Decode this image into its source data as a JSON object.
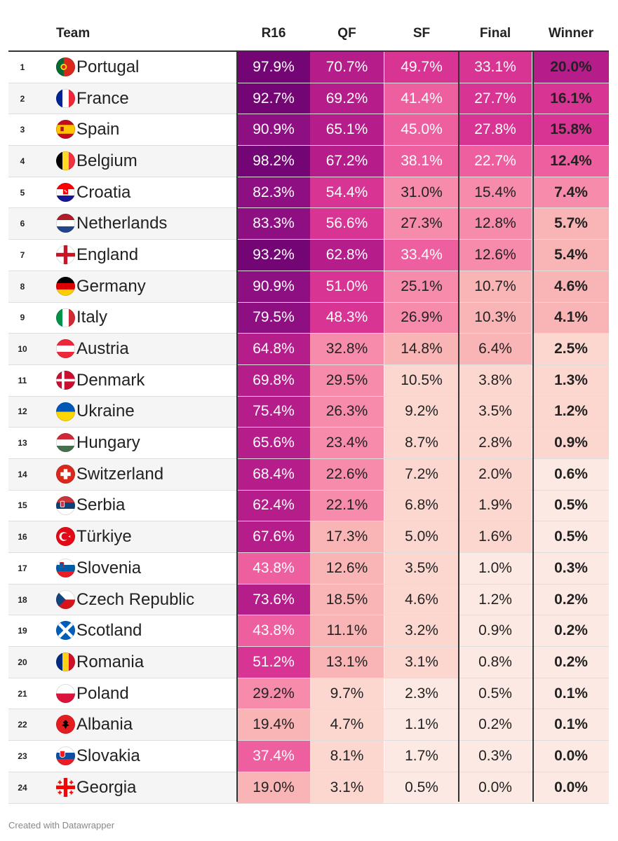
{
  "header": {
    "rank": "",
    "team": "Team",
    "r16": "R16",
    "qf": "QF",
    "sf": "SF",
    "final": "Final",
    "winner": "Winner"
  },
  "footer": "Created with Datawrapper",
  "colors": {
    "scale": [
      "#fde9e3",
      "#fcd7d0",
      "#f9b5b6",
      "#f68bab",
      "#ee5fa0",
      "#d83493",
      "#b51d8b",
      "#8d0f82",
      "#740574"
    ],
    "text_dark": "#222222",
    "text_light": "#ffffff"
  },
  "chart_data": {
    "type": "table",
    "title": "",
    "columns": [
      "Team",
      "R16",
      "QF",
      "SF",
      "Final",
      "Winner"
    ],
    "units": "%",
    "rows": [
      {
        "rank": "1",
        "team": "Portugal",
        "flag": "portugal-flag",
        "r16": 97.9,
        "qf": 70.7,
        "sf": 49.7,
        "final": 33.1,
        "winner": 20.0
      },
      {
        "rank": "2",
        "team": "France",
        "flag": "france-flag",
        "r16": 92.7,
        "qf": 69.2,
        "sf": 41.4,
        "final": 27.7,
        "winner": 16.1
      },
      {
        "rank": "3",
        "team": "Spain",
        "flag": "spain-flag",
        "r16": 90.9,
        "qf": 65.1,
        "sf": 45.0,
        "final": 27.8,
        "winner": 15.8
      },
      {
        "rank": "4",
        "team": "Belgium",
        "flag": "belgium-flag",
        "r16": 98.2,
        "qf": 67.2,
        "sf": 38.1,
        "final": 22.7,
        "winner": 12.4
      },
      {
        "rank": "5",
        "team": "Croatia",
        "flag": "croatia-flag",
        "r16": 82.3,
        "qf": 54.4,
        "sf": 31.0,
        "final": 15.4,
        "winner": 7.4
      },
      {
        "rank": "6",
        "team": "Netherlands",
        "flag": "netherlands-flag",
        "r16": 83.3,
        "qf": 56.6,
        "sf": 27.3,
        "final": 12.8,
        "winner": 5.7
      },
      {
        "rank": "7",
        "team": "England",
        "flag": "england-flag",
        "r16": 93.2,
        "qf": 62.8,
        "sf": 33.4,
        "final": 12.6,
        "winner": 5.4
      },
      {
        "rank": "8",
        "team": "Germany",
        "flag": "germany-flag",
        "r16": 90.9,
        "qf": 51.0,
        "sf": 25.1,
        "final": 10.7,
        "winner": 4.6
      },
      {
        "rank": "9",
        "team": "Italy",
        "flag": "italy-flag",
        "r16": 79.5,
        "qf": 48.3,
        "sf": 26.9,
        "final": 10.3,
        "winner": 4.1
      },
      {
        "rank": "10",
        "team": "Austria",
        "flag": "austria-flag",
        "r16": 64.8,
        "qf": 32.8,
        "sf": 14.8,
        "final": 6.4,
        "winner": 2.5
      },
      {
        "rank": "11",
        "team": "Denmark",
        "flag": "denmark-flag",
        "r16": 69.8,
        "qf": 29.5,
        "sf": 10.5,
        "final": 3.8,
        "winner": 1.3
      },
      {
        "rank": "12",
        "team": "Ukraine",
        "flag": "ukraine-flag",
        "r16": 75.4,
        "qf": 26.3,
        "sf": 9.2,
        "final": 3.5,
        "winner": 1.2
      },
      {
        "rank": "13",
        "team": "Hungary",
        "flag": "hungary-flag",
        "r16": 65.6,
        "qf": 23.4,
        "sf": 8.7,
        "final": 2.8,
        "winner": 0.9
      },
      {
        "rank": "14",
        "team": "Switzerland",
        "flag": "switzerland-flag",
        "r16": 68.4,
        "qf": 22.6,
        "sf": 7.2,
        "final": 2.0,
        "winner": 0.6
      },
      {
        "rank": "15",
        "team": "Serbia",
        "flag": "serbia-flag",
        "r16": 62.4,
        "qf": 22.1,
        "sf": 6.8,
        "final": 1.9,
        "winner": 0.5
      },
      {
        "rank": "16",
        "team": "Türkiye",
        "flag": "turkiye-flag",
        "r16": 67.6,
        "qf": 17.3,
        "sf": 5.0,
        "final": 1.6,
        "winner": 0.5
      },
      {
        "rank": "17",
        "team": "Slovenia",
        "flag": "slovenia-flag",
        "r16": 43.8,
        "qf": 12.6,
        "sf": 3.5,
        "final": 1.0,
        "winner": 0.3
      },
      {
        "rank": "18",
        "team": "Czech Republic",
        "flag": "czech-republic-flag",
        "r16": 73.6,
        "qf": 18.5,
        "sf": 4.6,
        "final": 1.2,
        "winner": 0.2
      },
      {
        "rank": "19",
        "team": "Scotland",
        "flag": "scotland-flag",
        "r16": 43.8,
        "qf": 11.1,
        "sf": 3.2,
        "final": 0.9,
        "winner": 0.2
      },
      {
        "rank": "20",
        "team": "Romania",
        "flag": "romania-flag",
        "r16": 51.2,
        "qf": 13.1,
        "sf": 3.1,
        "final": 0.8,
        "winner": 0.2
      },
      {
        "rank": "21",
        "team": "Poland",
        "flag": "poland-flag",
        "r16": 29.2,
        "qf": 9.7,
        "sf": 2.3,
        "final": 0.5,
        "winner": 0.1
      },
      {
        "rank": "22",
        "team": "Albania",
        "flag": "albania-flag",
        "r16": 19.4,
        "qf": 4.7,
        "sf": 1.1,
        "final": 0.2,
        "winner": 0.1
      },
      {
        "rank": "23",
        "team": "Slovakia",
        "flag": "slovakia-flag",
        "r16": 37.4,
        "qf": 8.1,
        "sf": 1.7,
        "final": 0.3,
        "winner": 0.0
      },
      {
        "rank": "24",
        "team": "Georgia",
        "flag": "georgia-flag",
        "r16": 19.0,
        "qf": 3.1,
        "sf": 0.5,
        "final": 0.0,
        "winner": 0.0
      }
    ]
  }
}
